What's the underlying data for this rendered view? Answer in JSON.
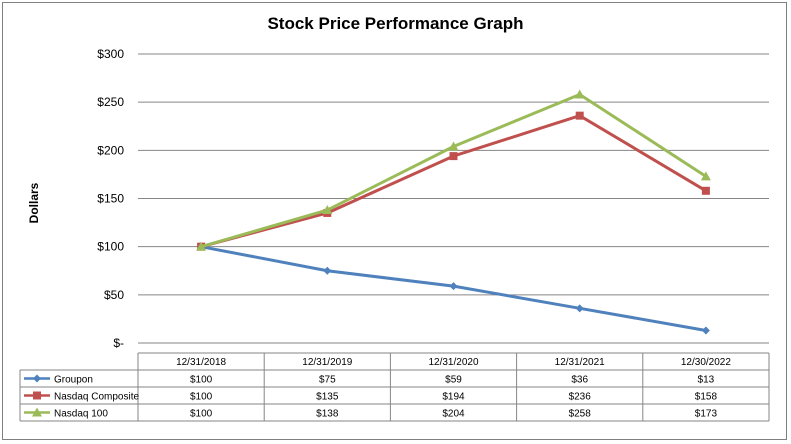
{
  "chart_data": {
    "type": "line",
    "title": "Stock Price Performance Graph",
    "ylabel": "Dollars",
    "xlabel": "",
    "ylim": [
      0,
      300
    ],
    "yticks": [
      0,
      50,
      100,
      150,
      200,
      250,
      300
    ],
    "ytick_labels": [
      "$-",
      "$50",
      "$100",
      "$150",
      "$200",
      "$250",
      "$300"
    ],
    "grid": true,
    "categories": [
      "12/31/2018",
      "12/31/2019",
      "12/31/2020",
      "12/31/2021",
      "12/30/2022"
    ],
    "series": [
      {
        "name": "Groupon",
        "values": [
          100,
          75,
          59,
          36,
          13
        ],
        "labels": [
          "$100",
          "$75",
          "$59",
          "$36",
          "$13"
        ],
        "color": "#4f81bd",
        "marker": "diamond"
      },
      {
        "name": "Nasdaq Composite",
        "values": [
          100,
          135,
          194,
          236,
          158
        ],
        "labels": [
          "$100",
          "$135",
          "$194",
          "$236",
          "$158"
        ],
        "color": "#c0504d",
        "marker": "square"
      },
      {
        "name": "Nasdaq 100",
        "values": [
          100,
          138,
          204,
          258,
          173
        ],
        "labels": [
          "$100",
          "$138",
          "$204",
          "$258",
          "$173"
        ],
        "color": "#9bbb59",
        "marker": "triangle"
      }
    ],
    "legend": "data-table-below"
  }
}
